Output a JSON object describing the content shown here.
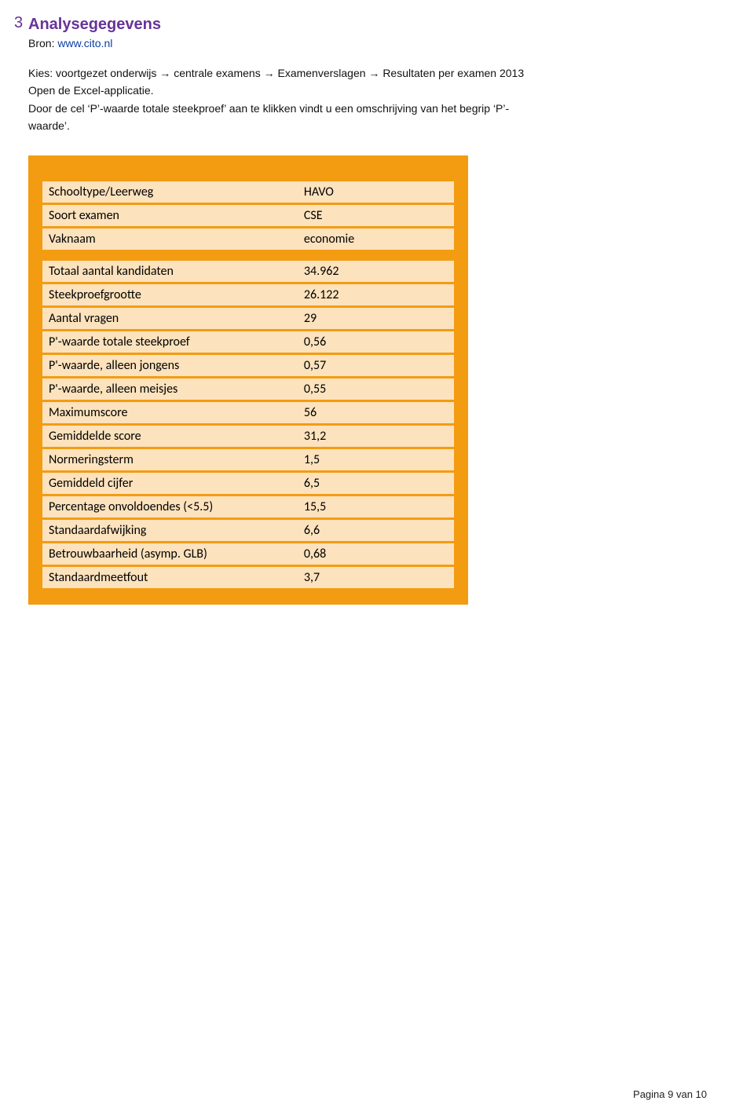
{
  "section": {
    "number": "3",
    "title": "Analysegegevens"
  },
  "source": {
    "label": "Bron: ",
    "link_text": "www.cito.nl"
  },
  "body": {
    "line1": "Kies: voortgezet onderwijs → centrale examens → Examenverslagen → Resultaten per examen 2013",
    "line2": "Open de Excel-applicatie.",
    "line3": "Door de cel ‘P’-waarde totale steekproef’ aan te klikken vindt u een omschrijving van het begrip ‘P’-",
    "line4": "waarde’."
  },
  "table": {
    "group1": [
      {
        "label": "Schooltype/Leerweg",
        "value": "HAVO"
      },
      {
        "label": "Soort examen",
        "value": "CSE"
      },
      {
        "label": "Vaknaam",
        "value": "economie"
      }
    ],
    "group2": [
      {
        "label": "Totaal aantal kandidaten",
        "value": "34.962"
      },
      {
        "label": "Steekproefgrootte",
        "value": "26.122"
      },
      {
        "label": "Aantal vragen",
        "value": "29"
      },
      {
        "label": "P'-waarde totale steekproef",
        "value": "0,56"
      },
      {
        "label": "P'-waarde, alleen jongens",
        "value": "0,57"
      },
      {
        "label": "P'-waarde, alleen meisjes",
        "value": "0,55"
      },
      {
        "label": "Maximumscore",
        "value": "56"
      },
      {
        "label": "Gemiddelde score",
        "value": "31,2"
      },
      {
        "label": "Normeringsterm",
        "value": "1,5"
      },
      {
        "label": "Gemiddeld cijfer",
        "value": "6,5"
      },
      {
        "label": "Percentage onvoldoendes (<5.5)",
        "value": "15,5"
      },
      {
        "label": "Standaardafwijking",
        "value": "6,6"
      },
      {
        "label": "Betrouwbaarheid (asymp. GLB)",
        "value": "0,68"
      },
      {
        "label": "Standaardmeetfout",
        "value": "3,7"
      }
    ]
  },
  "footer": {
    "text": "Pagina 9 van 10"
  },
  "colors": {
    "accent_purple": "#663399",
    "link_blue": "#0b3ea5",
    "table_bg": "#f39c12",
    "cell_bg": "#fce2bd"
  }
}
